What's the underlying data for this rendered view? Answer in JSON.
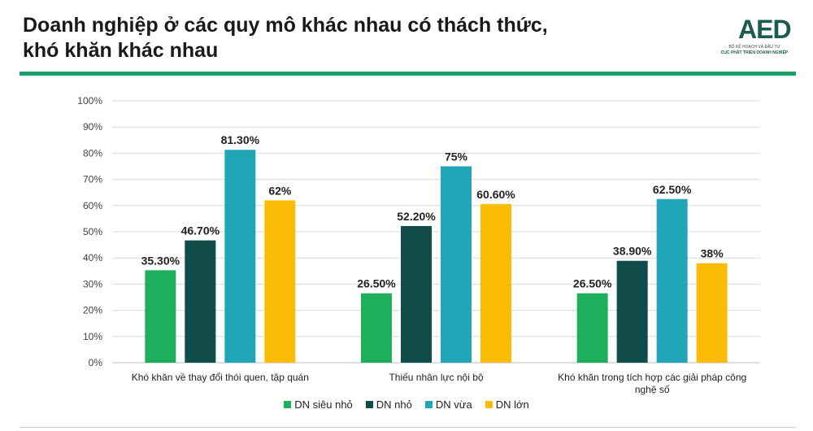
{
  "header": {
    "title_line1": "Doanh nghiệp ở các quy mô khác nhau có thách thức,",
    "title_line2": "khó khăn khác nhau"
  },
  "logo": {
    "text": "AED",
    "sub1": "BỘ KẾ HOẠCH VÀ ĐẦU TƯ",
    "sub2": "CỤC PHÁT TRIỂN DOANH NGHIỆP"
  },
  "colors": {
    "accent_rule": "#1b9e6a",
    "series": [
      "#1fae5c",
      "#0f4c4a",
      "#21a6b8",
      "#fbbc05"
    ]
  },
  "chart_data": {
    "type": "bar",
    "categories": [
      "Khó khăn về thay đổi thói quen, tập quán",
      "Thiếu nhân lực nội bộ",
      "Khó khăn trong tích hợp các giải pháp công nghệ số"
    ],
    "category_lines": [
      [
        "Khó khăn về thay đổi thói quen, tập quán"
      ],
      [
        "Thiếu nhân lực nội bộ"
      ],
      [
        "Khó khăn trong tích hợp các giải pháp công",
        "nghệ số"
      ]
    ],
    "series": [
      {
        "name": "DN siêu nhỏ",
        "values": [
          35.3,
          26.5,
          26.5
        ],
        "labels": [
          "35.30%",
          "26.50%",
          "26.50%"
        ]
      },
      {
        "name": "DN nhỏ",
        "values": [
          46.7,
          52.2,
          38.9
        ],
        "labels": [
          "46.70%",
          "52.20%",
          "38.90%"
        ]
      },
      {
        "name": "DN vừa",
        "values": [
          81.3,
          75,
          62.5
        ],
        "labels": [
          "81.30%",
          "75%",
          "62.50%"
        ]
      },
      {
        "name": "DN lớn",
        "values": [
          62,
          60.6,
          38
        ],
        "labels": [
          "62%",
          "60.60%",
          "38%"
        ]
      }
    ],
    "yticks": [
      "0%",
      "10%",
      "20%",
      "30%",
      "40%",
      "50%",
      "60%",
      "70%",
      "80%",
      "90%",
      "100%"
    ],
    "ylim": [
      0,
      100
    ],
    "grid": true,
    "legend_position": "bottom",
    "xlabel": "",
    "ylabel": ""
  }
}
